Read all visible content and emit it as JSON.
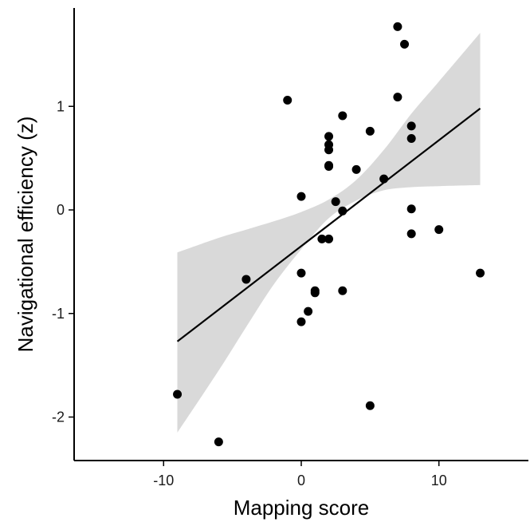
{
  "chart_data": {
    "type": "scatter",
    "xlabel": "Mapping score",
    "ylabel": "Navigational efficiency (z)",
    "xlim": [
      -16.5,
      16.5
    ],
    "ylim": [
      -2.42,
      1.95
    ],
    "x_ticks": [
      -10,
      0,
      10
    ],
    "x_tick_labels": [
      "-10",
      "0",
      "10"
    ],
    "y_ticks": [
      -2,
      -1,
      0,
      1
    ],
    "y_tick_labels": [
      "-2",
      "-1",
      "0",
      "1"
    ],
    "grid": false,
    "points": [
      {
        "x": -9,
        "y": -1.78
      },
      {
        "x": -6,
        "y": -2.24
      },
      {
        "x": -4,
        "y": -0.67
      },
      {
        "x": -1,
        "y": 1.06
      },
      {
        "x": 0,
        "y": 0.13
      },
      {
        "x": 0,
        "y": -0.61
      },
      {
        "x": 0,
        "y": -1.08
      },
      {
        "x": 0.5,
        "y": -0.98
      },
      {
        "x": 1,
        "y": -0.78
      },
      {
        "x": 1,
        "y": -0.8
      },
      {
        "x": 1.5,
        "y": -0.28
      },
      {
        "x": 2,
        "y": -0.28
      },
      {
        "x": 2,
        "y": 0.71
      },
      {
        "x": 2,
        "y": 0.63
      },
      {
        "x": 2,
        "y": 0.58
      },
      {
        "x": 2,
        "y": 0.42
      },
      {
        "x": 2,
        "y": 0.43
      },
      {
        "x": 2.5,
        "y": 0.08
      },
      {
        "x": 3,
        "y": 0.91
      },
      {
        "x": 3,
        "y": -0.01
      },
      {
        "x": 3,
        "y": -0.78
      },
      {
        "x": 4,
        "y": 0.39
      },
      {
        "x": 5,
        "y": 0.76
      },
      {
        "x": 5,
        "y": -1.89
      },
      {
        "x": 6,
        "y": 0.3
      },
      {
        "x": 7,
        "y": 1.77
      },
      {
        "x": 7,
        "y": 1.09
      },
      {
        "x": 7.5,
        "y": 1.6
      },
      {
        "x": 8,
        "y": 0.81
      },
      {
        "x": 8,
        "y": 0.69
      },
      {
        "x": 8,
        "y": 0.01
      },
      {
        "x": 8,
        "y": -0.23
      },
      {
        "x": 10,
        "y": -0.19
      },
      {
        "x": 13,
        "y": -0.61
      }
    ],
    "fit_line": {
      "x": [
        -9,
        13
      ],
      "y": [
        -1.27,
        0.98
      ]
    },
    "confidence_band": {
      "x": [
        -9,
        -6,
        -4,
        -2,
        0,
        2,
        4,
        6,
        8,
        10,
        13
      ],
      "upper": [
        -0.41,
        -0.27,
        -0.19,
        -0.11,
        -0.02,
        0.1,
        0.29,
        0.58,
        0.93,
        1.24,
        1.71
      ],
      "lower": [
        -2.15,
        -1.55,
        -1.13,
        -0.72,
        -0.38,
        -0.08,
        0.09,
        0.19,
        0.22,
        0.23,
        0.24
      ]
    }
  }
}
